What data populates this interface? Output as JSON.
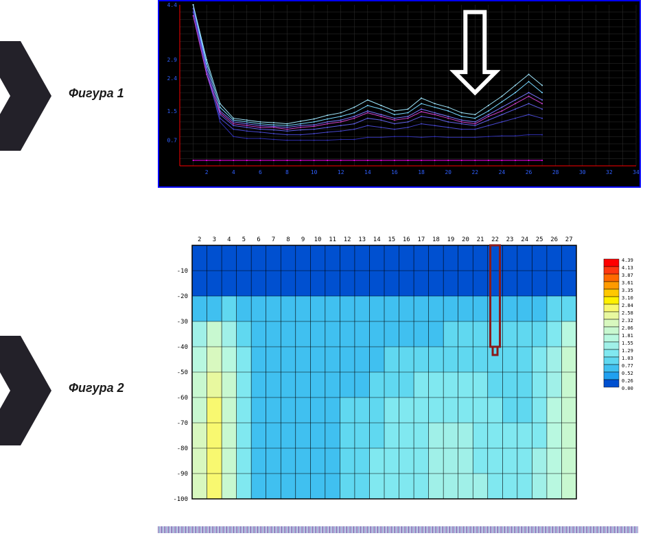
{
  "labels": {
    "fig1": "Фигура 1",
    "fig2": "Фигура 2"
  },
  "pointer_color": "#232129",
  "chart1": {
    "bg": "#000000",
    "grid_color": "#303030",
    "axis_line_color": "#ff0000",
    "border": "#0000ff",
    "x": {
      "min": 0,
      "max": 34,
      "ticks": [
        2,
        4,
        6,
        8,
        10,
        12,
        14,
        16,
        18,
        20,
        22,
        24,
        26,
        28,
        30,
        32,
        34
      ]
    },
    "y": {
      "min": 0,
      "max": 4.4,
      "ticks": [
        0.7,
        1.5,
        2.4,
        2.9,
        4.4
      ]
    },
    "arrow": {
      "x": 22,
      "from_y": 4.2,
      "to_y": 2.0,
      "stroke": "#ffffff"
    },
    "series": [
      {
        "color": "#ff00ff",
        "w": 1,
        "pts": [
          [
            1,
            0.15
          ],
          [
            2,
            0.15
          ],
          [
            3,
            0.15
          ],
          [
            4,
            0.15
          ],
          [
            5,
            0.15
          ],
          [
            6,
            0.15
          ],
          [
            7,
            0.15
          ],
          [
            8,
            0.15
          ],
          [
            9,
            0.15
          ],
          [
            10,
            0.15
          ],
          [
            11,
            0.15
          ],
          [
            12,
            0.15
          ],
          [
            13,
            0.15
          ],
          [
            14,
            0.15
          ],
          [
            15,
            0.15
          ],
          [
            16,
            0.15
          ],
          [
            17,
            0.15
          ],
          [
            18,
            0.15
          ],
          [
            19,
            0.15
          ],
          [
            20,
            0.15
          ],
          [
            21,
            0.15
          ],
          [
            22,
            0.15
          ],
          [
            23,
            0.15
          ],
          [
            24,
            0.15
          ],
          [
            25,
            0.15
          ],
          [
            26,
            0.15
          ],
          [
            27,
            0.15
          ]
        ]
      },
      {
        "color": "#3030b0",
        "w": 1,
        "pts": [
          [
            1,
            4.4
          ],
          [
            2,
            2.6
          ],
          [
            3,
            1.2
          ],
          [
            4,
            0.8
          ],
          [
            5,
            0.75
          ],
          [
            6,
            0.75
          ],
          [
            7,
            0.72
          ],
          [
            8,
            0.7
          ],
          [
            9,
            0.7
          ],
          [
            10,
            0.7
          ],
          [
            11,
            0.7
          ],
          [
            12,
            0.72
          ],
          [
            13,
            0.72
          ],
          [
            14,
            0.78
          ],
          [
            15,
            0.78
          ],
          [
            16,
            0.8
          ],
          [
            17,
            0.8
          ],
          [
            18,
            0.78
          ],
          [
            19,
            0.8
          ],
          [
            20,
            0.78
          ],
          [
            21,
            0.78
          ],
          [
            22,
            0.78
          ],
          [
            23,
            0.8
          ],
          [
            24,
            0.82
          ],
          [
            25,
            0.82
          ],
          [
            26,
            0.85
          ],
          [
            27,
            0.85
          ]
        ]
      },
      {
        "color": "#4848d0",
        "w": 1,
        "pts": [
          [
            1,
            4.2
          ],
          [
            2,
            2.5
          ],
          [
            3,
            1.3
          ],
          [
            4,
            1.0
          ],
          [
            5,
            0.95
          ],
          [
            6,
            0.92
          ],
          [
            7,
            0.88
          ],
          [
            8,
            0.85
          ],
          [
            9,
            0.85
          ],
          [
            10,
            0.88
          ],
          [
            11,
            0.92
          ],
          [
            12,
            0.95
          ],
          [
            13,
            1.0
          ],
          [
            14,
            1.1
          ],
          [
            15,
            1.05
          ],
          [
            16,
            1.0
          ],
          [
            17,
            1.05
          ],
          [
            18,
            1.15
          ],
          [
            19,
            1.1
          ],
          [
            20,
            1.05
          ],
          [
            21,
            1.0
          ],
          [
            22,
            1.0
          ],
          [
            23,
            1.1
          ],
          [
            24,
            1.2
          ],
          [
            25,
            1.3
          ],
          [
            26,
            1.4
          ],
          [
            27,
            1.3
          ]
        ]
      },
      {
        "color": "#6060e8",
        "w": 1,
        "pts": [
          [
            1,
            4.3
          ],
          [
            2,
            2.6
          ],
          [
            3,
            1.4
          ],
          [
            4,
            1.1
          ],
          [
            5,
            1.05
          ],
          [
            6,
            1.0
          ],
          [
            7,
            0.98
          ],
          [
            8,
            0.95
          ],
          [
            9,
            0.98
          ],
          [
            10,
            1.0
          ],
          [
            11,
            1.05
          ],
          [
            12,
            1.1
          ],
          [
            13,
            1.15
          ],
          [
            14,
            1.3
          ],
          [
            15,
            1.25
          ],
          [
            16,
            1.15
          ],
          [
            17,
            1.2
          ],
          [
            18,
            1.35
          ],
          [
            19,
            1.3
          ],
          [
            20,
            1.2
          ],
          [
            21,
            1.15
          ],
          [
            22,
            1.1
          ],
          [
            23,
            1.25
          ],
          [
            24,
            1.4
          ],
          [
            25,
            1.55
          ],
          [
            26,
            1.7
          ],
          [
            27,
            1.55
          ]
        ]
      },
      {
        "color": "#7878ff",
        "w": 1,
        "pts": [
          [
            1,
            4.4
          ],
          [
            2,
            2.7
          ],
          [
            3,
            1.5
          ],
          [
            4,
            1.2
          ],
          [
            5,
            1.15
          ],
          [
            6,
            1.1
          ],
          [
            7,
            1.08
          ],
          [
            8,
            1.05
          ],
          [
            9,
            1.1
          ],
          [
            10,
            1.12
          ],
          [
            11,
            1.2
          ],
          [
            12,
            1.25
          ],
          [
            13,
            1.35
          ],
          [
            14,
            1.5
          ],
          [
            15,
            1.4
          ],
          [
            16,
            1.3
          ],
          [
            17,
            1.35
          ],
          [
            18,
            1.55
          ],
          [
            19,
            1.45
          ],
          [
            20,
            1.35
          ],
          [
            21,
            1.25
          ],
          [
            22,
            1.2
          ],
          [
            23,
            1.4
          ],
          [
            24,
            1.6
          ],
          [
            25,
            1.8
          ],
          [
            26,
            2.0
          ],
          [
            27,
            1.8
          ]
        ]
      },
      {
        "color": "#76d6ff",
        "w": 1,
        "pts": [
          [
            1,
            4.4
          ],
          [
            2,
            2.8
          ],
          [
            3,
            1.6
          ],
          [
            4,
            1.25
          ],
          [
            5,
            1.2
          ],
          [
            6,
            1.15
          ],
          [
            7,
            1.12
          ],
          [
            8,
            1.1
          ],
          [
            9,
            1.15
          ],
          [
            10,
            1.2
          ],
          [
            11,
            1.28
          ],
          [
            12,
            1.35
          ],
          [
            13,
            1.45
          ],
          [
            14,
            1.65
          ],
          [
            15,
            1.55
          ],
          [
            16,
            1.4
          ],
          [
            17,
            1.45
          ],
          [
            18,
            1.7
          ],
          [
            19,
            1.6
          ],
          [
            20,
            1.5
          ],
          [
            21,
            1.35
          ],
          [
            22,
            1.3
          ],
          [
            23,
            1.5
          ],
          [
            24,
            1.75
          ],
          [
            25,
            2.0
          ],
          [
            26,
            2.3
          ],
          [
            27,
            2.0
          ]
        ]
      },
      {
        "color": "#a0e8ff",
        "w": 1,
        "pts": [
          [
            1,
            4.4
          ],
          [
            2,
            2.9
          ],
          [
            3,
            1.7
          ],
          [
            4,
            1.3
          ],
          [
            5,
            1.25
          ],
          [
            6,
            1.2
          ],
          [
            7,
            1.18
          ],
          [
            8,
            1.15
          ],
          [
            9,
            1.22
          ],
          [
            10,
            1.28
          ],
          [
            11,
            1.38
          ],
          [
            12,
            1.45
          ],
          [
            13,
            1.6
          ],
          [
            14,
            1.8
          ],
          [
            15,
            1.65
          ],
          [
            16,
            1.5
          ],
          [
            17,
            1.55
          ],
          [
            18,
            1.85
          ],
          [
            19,
            1.7
          ],
          [
            20,
            1.6
          ],
          [
            21,
            1.45
          ],
          [
            22,
            1.4
          ],
          [
            23,
            1.65
          ],
          [
            24,
            1.9
          ],
          [
            25,
            2.2
          ],
          [
            26,
            2.5
          ],
          [
            27,
            2.2
          ]
        ]
      },
      {
        "color": "#d040d0",
        "w": 1,
        "pts": [
          [
            1,
            4.1
          ],
          [
            2,
            2.5
          ],
          [
            3,
            1.45
          ],
          [
            4,
            1.15
          ],
          [
            5,
            1.1
          ],
          [
            6,
            1.05
          ],
          [
            7,
            1.05
          ],
          [
            8,
            1.0
          ],
          [
            9,
            1.05
          ],
          [
            10,
            1.08
          ],
          [
            11,
            1.15
          ],
          [
            12,
            1.2
          ],
          [
            13,
            1.3
          ],
          [
            14,
            1.45
          ],
          [
            15,
            1.35
          ],
          [
            16,
            1.25
          ],
          [
            17,
            1.3
          ],
          [
            18,
            1.48
          ],
          [
            19,
            1.4
          ],
          [
            20,
            1.3
          ],
          [
            21,
            1.2
          ],
          [
            22,
            1.15
          ],
          [
            23,
            1.35
          ],
          [
            24,
            1.5
          ],
          [
            25,
            1.7
          ],
          [
            26,
            1.9
          ],
          [
            27,
            1.7
          ]
        ]
      }
    ]
  },
  "chart2": {
    "x_ticks": [
      2,
      3,
      4,
      5,
      6,
      7,
      8,
      9,
      10,
      11,
      12,
      13,
      14,
      15,
      16,
      17,
      18,
      19,
      20,
      21,
      22,
      23,
      24,
      25,
      26,
      27
    ],
    "y_ticks": [
      -10,
      -20,
      -30,
      -40,
      -50,
      -60,
      -70,
      -80,
      -90,
      -100
    ],
    "x_range": [
      1,
      27
    ],
    "y_range": [
      -100,
      0
    ],
    "grid_color": "#000000",
    "border_color": "#000000",
    "marker": {
      "x": 21.5,
      "y_from": 0,
      "y_to": -40,
      "end_box_h": 5,
      "stroke": "#8a1a1a",
      "width": 14
    },
    "legend": {
      "colors": [
        "#ff0000",
        "#ff3810",
        "#ff6a00",
        "#ff9a00",
        "#ffc800",
        "#fff000",
        "#f8f870",
        "#e8f89f",
        "#d8f8bf",
        "#c8f8d0",
        "#b8f8e0",
        "#a0f0e8",
        "#80e8f0",
        "#60d8f0",
        "#40c0f0",
        "#20a0f0",
        "#0050d0"
      ],
      "labels": [
        "4.39",
        "4.13",
        "3.87",
        "3.61",
        "3.35",
        "3.10",
        "2.84",
        "2.58",
        "2.32",
        "2.06",
        "1.81",
        "1.55",
        "1.29",
        "1.03",
        "0.77",
        "0.52",
        "0.26",
        "0.00"
      ]
    },
    "cells": [
      [
        16,
        16,
        16,
        16,
        16,
        16,
        16,
        16,
        16,
        16,
        16,
        16,
        16,
        16,
        16,
        16,
        16,
        16,
        16,
        16,
        16,
        16,
        16,
        16,
        16,
        16
      ],
      [
        16,
        16,
        16,
        16,
        16,
        16,
        16,
        16,
        16,
        16,
        16,
        16,
        16,
        16,
        16,
        16,
        16,
        16,
        16,
        16,
        16,
        16,
        16,
        16,
        16,
        16
      ],
      [
        14,
        14,
        13,
        14,
        14,
        14,
        14,
        14,
        14,
        14,
        14,
        14,
        14,
        14,
        14,
        14,
        14,
        14,
        14,
        14,
        14,
        14,
        14,
        14,
        13,
        13
      ],
      [
        11,
        9,
        11,
        13,
        14,
        14,
        14,
        14,
        14,
        14,
        14,
        14,
        14,
        14,
        14,
        14,
        14,
        13,
        13,
        13,
        13,
        13,
        13,
        13,
        12,
        10
      ],
      [
        10,
        8,
        10,
        12,
        14,
        14,
        14,
        14,
        14,
        14,
        14,
        14,
        14,
        13,
        13,
        13,
        13,
        13,
        13,
        13,
        13,
        13,
        13,
        12,
        11,
        9
      ],
      [
        9,
        7,
        9,
        12,
        14,
        14,
        14,
        14,
        14,
        14,
        14,
        14,
        13,
        13,
        13,
        12,
        12,
        12,
        12,
        12,
        13,
        13,
        13,
        12,
        11,
        9
      ],
      [
        9,
        6,
        9,
        12,
        14,
        14,
        14,
        14,
        14,
        14,
        13,
        13,
        13,
        12,
        12,
        12,
        12,
        12,
        12,
        12,
        12,
        13,
        13,
        12,
        10,
        9
      ],
      [
        8,
        6,
        9,
        12,
        14,
        14,
        14,
        14,
        14,
        14,
        13,
        13,
        13,
        12,
        12,
        12,
        11,
        11,
        11,
        12,
        12,
        12,
        12,
        12,
        10,
        9
      ],
      [
        8,
        6,
        9,
        12,
        14,
        14,
        14,
        14,
        14,
        14,
        13,
        13,
        12,
        12,
        12,
        12,
        11,
        11,
        11,
        12,
        12,
        12,
        12,
        11,
        10,
        9
      ],
      [
        8,
        6,
        9,
        12,
        14,
        14,
        14,
        14,
        14,
        14,
        13,
        13,
        12,
        12,
        12,
        12,
        11,
        11,
        11,
        11,
        12,
        12,
        12,
        11,
        10,
        9
      ]
    ]
  }
}
